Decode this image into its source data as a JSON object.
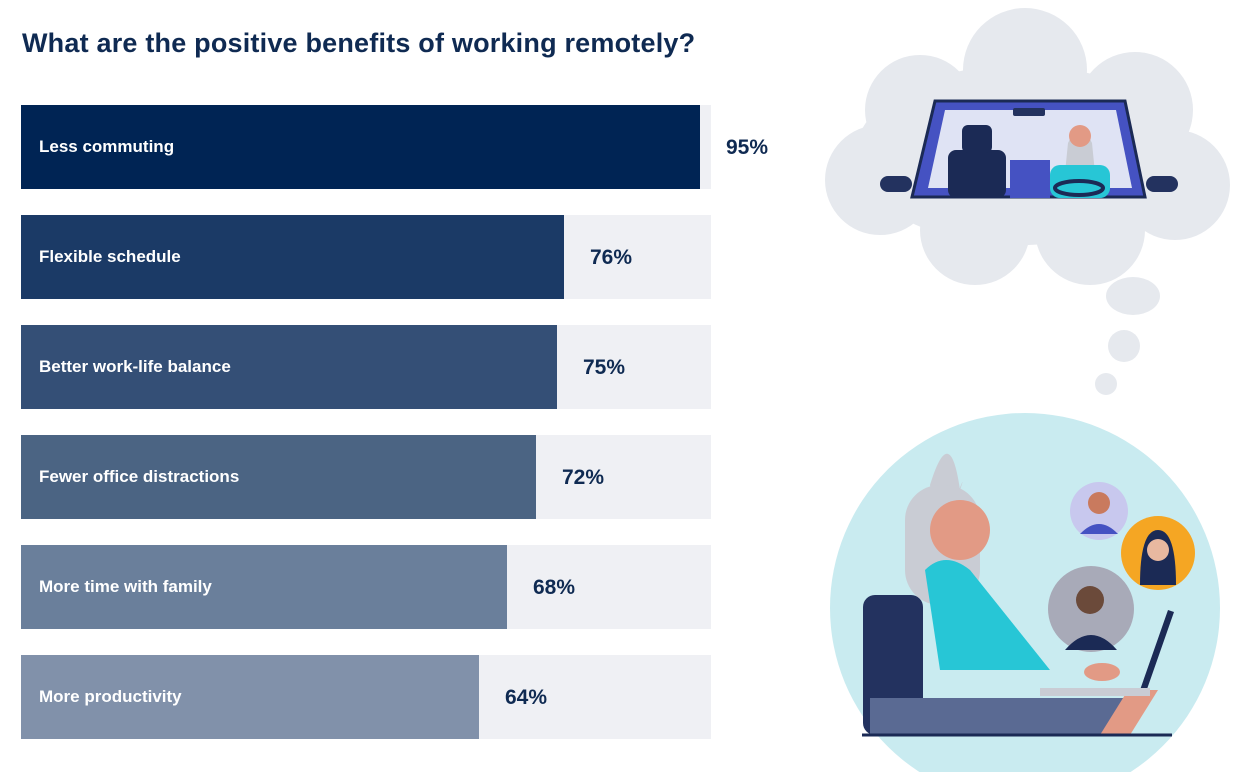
{
  "chart_data": {
    "type": "bar",
    "orientation": "horizontal",
    "title": "What are the positive benefits of working remotely?",
    "categories": [
      "Less commuting",
      "Flexible schedule",
      "Better work-life balance",
      "Fewer office distractions",
      "More time with family",
      "More productivity"
    ],
    "values": [
      95,
      76,
      75,
      72,
      68,
      64
    ],
    "value_labels": [
      "95%",
      "76%",
      "75%",
      "72%",
      "68%",
      "64%"
    ],
    "xlim": [
      0,
      100
    ],
    "colors": [
      "#002454",
      "#1b3a66",
      "#344f76",
      "#4b6483",
      "#6a7f9b",
      "#8191aa"
    ],
    "track_color": "#eff0f4",
    "grid": false,
    "legend": "none"
  },
  "illustration": {
    "thought_cloud_color": "#e6e9ee",
    "car_color": "#4552c2",
    "circle_color": "#c9ebf0",
    "icons": [
      "thought-cloud",
      "car-windshield",
      "driver",
      "woman-at-laptop",
      "video-call-avatar"
    ]
  }
}
